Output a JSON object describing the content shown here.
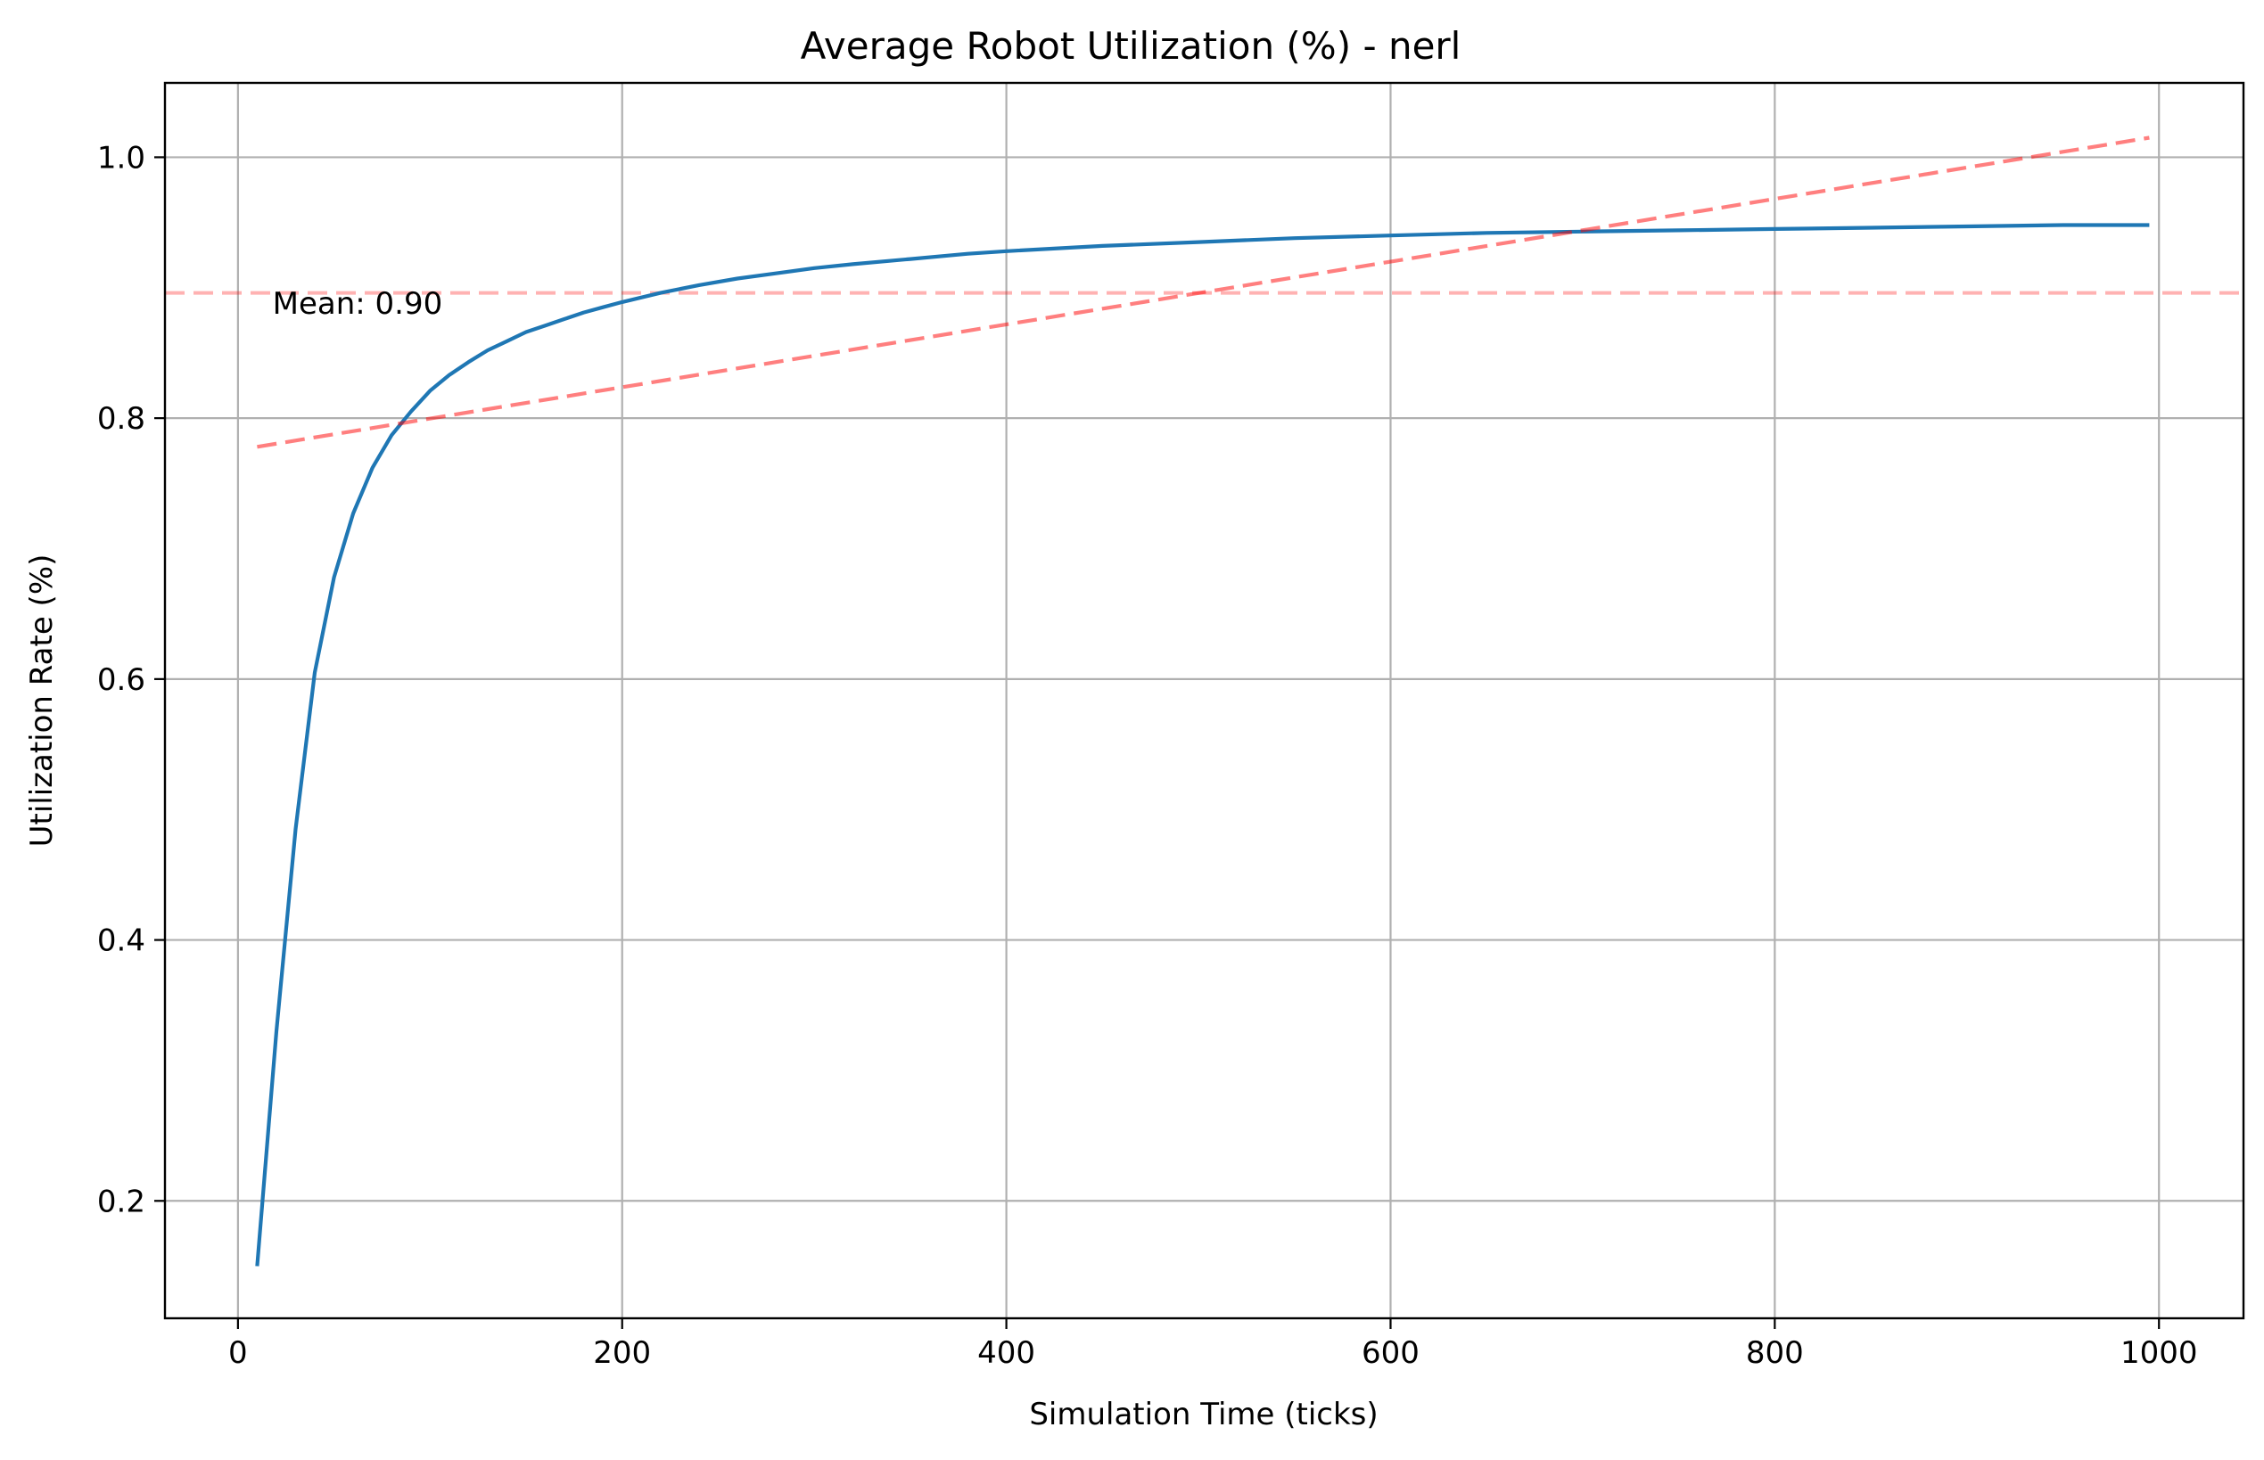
{
  "chart_data": {
    "type": "line",
    "title": "Average Robot Utilization (%) - nerl",
    "xlabel": "Simulation Time (ticks)",
    "ylabel": "Utilization Rate (%)",
    "xlim": [
      -38,
      1044
    ],
    "ylim": [
      0.11,
      1.057
    ],
    "xticks": [
      0,
      200,
      400,
      600,
      800,
      1000
    ],
    "yticks": [
      0.2,
      0.4,
      0.6,
      0.8,
      1.0
    ],
    "xtick_labels": [
      "0",
      "200",
      "400",
      "600",
      "800",
      "1000"
    ],
    "ytick_labels": [
      "0.2",
      "0.4",
      "0.6",
      "0.8",
      "1.0"
    ],
    "grid": true,
    "series": [
      {
        "color": "#1f77b4",
        "style": "solid",
        "x": [
          10,
          20,
          30,
          40,
          50,
          60,
          70,
          80,
          90,
          100,
          110,
          120,
          130,
          140,
          150,
          160,
          170,
          180,
          190,
          200,
          220,
          240,
          260,
          280,
          300,
          320,
          350,
          380,
          400,
          450,
          500,
          550,
          600,
          650,
          700,
          750,
          800,
          850,
          900,
          950,
          995
        ],
        "y": [
          0.15,
          0.33,
          0.485,
          0.605,
          0.678,
          0.727,
          0.762,
          0.787,
          0.805,
          0.821,
          0.833,
          0.843,
          0.852,
          0.859,
          0.866,
          0.871,
          0.876,
          0.881,
          0.885,
          0.889,
          0.896,
          0.902,
          0.907,
          0.911,
          0.915,
          0.918,
          0.922,
          0.926,
          0.928,
          0.932,
          0.935,
          0.938,
          0.94,
          0.942,
          0.943,
          0.944,
          0.945,
          0.946,
          0.947,
          0.948,
          0.948
        ]
      },
      {
        "color": "#ff0000",
        "style": "dashed",
        "opacity": 0.5,
        "x": [
          10,
          995
        ],
        "y": [
          0.778,
          1.015
        ]
      }
    ],
    "hlines": [
      {
        "y": 0.896,
        "color": "#ff0000",
        "style": "dashed",
        "opacity": 0.3
      }
    ],
    "annotations": [
      {
        "text": "Mean: 0.90",
        "x": 18,
        "y": 0.88
      }
    ]
  }
}
